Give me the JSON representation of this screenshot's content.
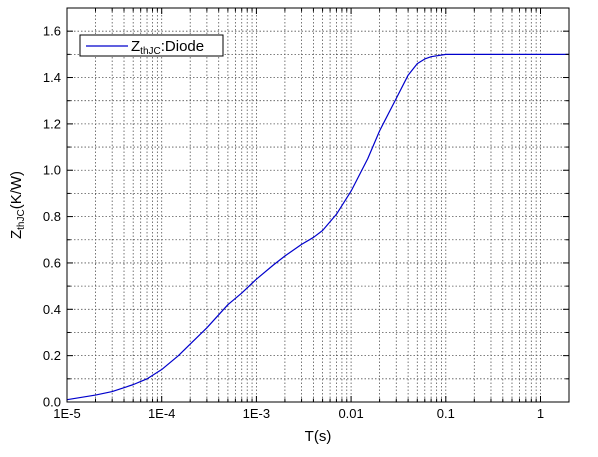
{
  "chart_data": {
    "type": "line",
    "title": "",
    "xlabel": "T(s)",
    "ylabel": "Z_thJC(K/W)",
    "ylabel_parts": {
      "main": "Z",
      "sub": "thJC",
      "rest": "(K/W)"
    },
    "x_scale": "log",
    "xlim": [
      1e-05,
      2
    ],
    "ylim": [
      0.0,
      1.7
    ],
    "grid": true,
    "legend_position": "top-left",
    "x_ticks": [
      {
        "value": 1e-05,
        "label": "1E-5"
      },
      {
        "value": 0.0001,
        "label": "1E-4"
      },
      {
        "value": 0.001,
        "label": "1E-3"
      },
      {
        "value": 0.01,
        "label": "0.01"
      },
      {
        "value": 0.1,
        "label": "0.1"
      },
      {
        "value": 1,
        "label": "1"
      }
    ],
    "y_ticks": [
      {
        "value": 0.0,
        "label": "0.0"
      },
      {
        "value": 0.2,
        "label": "0.2"
      },
      {
        "value": 0.4,
        "label": "0.4"
      },
      {
        "value": 0.6,
        "label": "0.6"
      },
      {
        "value": 0.8,
        "label": "0.8"
      },
      {
        "value": 1.0,
        "label": "1.0"
      },
      {
        "value": 1.2,
        "label": "1.2"
      },
      {
        "value": 1.4,
        "label": "1.4"
      },
      {
        "value": 1.6,
        "label": "1.6"
      }
    ],
    "series": [
      {
        "name": "Z_thJC:Diode",
        "name_parts": {
          "main": "Z",
          "sub": "thJC",
          "rest": ":Diode"
        },
        "color": "#0000cc",
        "x": [
          1e-05,
          2e-05,
          3e-05,
          5e-05,
          7e-05,
          0.0001,
          0.00015,
          0.0002,
          0.0003,
          0.0005,
          0.0007,
          0.001,
          0.0015,
          0.002,
          0.003,
          0.004,
          0.005,
          0.007,
          0.01,
          0.015,
          0.02,
          0.03,
          0.04,
          0.05,
          0.06,
          0.07,
          0.1,
          0.2,
          0.5,
          1,
          2
        ],
        "y": [
          0.01,
          0.03,
          0.045,
          0.075,
          0.1,
          0.14,
          0.2,
          0.25,
          0.32,
          0.42,
          0.47,
          0.53,
          0.59,
          0.63,
          0.68,
          0.71,
          0.74,
          0.81,
          0.91,
          1.05,
          1.17,
          1.31,
          1.41,
          1.46,
          1.48,
          1.49,
          1.5,
          1.5,
          1.5,
          1.5,
          1.5
        ]
      }
    ]
  }
}
